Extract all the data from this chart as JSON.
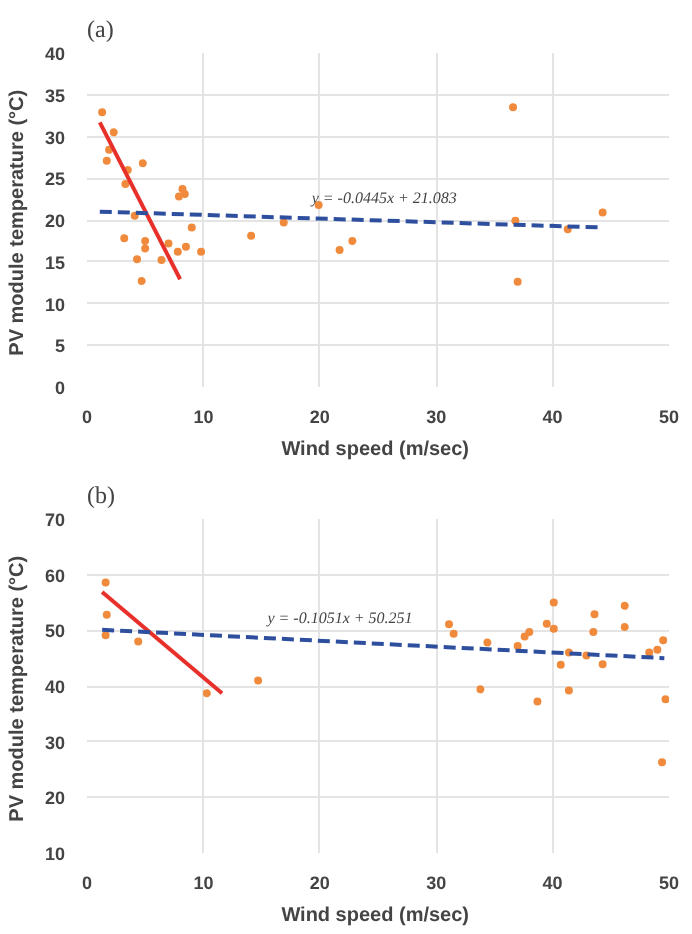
{
  "chart_data": [
    {
      "type": "scatter",
      "title": "(a)",
      "xlabel": "Wind speed  (m/sec)",
      "ylabel": "PV module temperature  (°C)",
      "xlim": [
        0,
        50
      ],
      "ylim": [
        0,
        40
      ],
      "xticks": [
        0,
        10,
        20,
        30,
        40,
        50
      ],
      "yticks": [
        0,
        5,
        10,
        15,
        20,
        25,
        30,
        35,
        40
      ],
      "grid": true,
      "series": [
        {
          "marker": "circle",
          "color": "#f08a3c",
          "x": [
            1.3,
            2.3,
            1.9,
            1.7,
            3.5,
            4.8,
            3.3,
            4.1,
            8.2,
            8.4,
            7.9,
            9.0,
            3.2,
            5.0,
            7.0,
            4.3,
            5.0,
            6.4,
            8.5,
            7.8,
            9.8,
            4.7,
            14.1,
            16.9,
            19.9,
            21.7,
            22.8,
            36.6,
            36.8,
            37.0,
            41.3,
            44.3
          ],
          "values": [
            32.9,
            30.5,
            28.4,
            27.1,
            26.0,
            26.8,
            24.3,
            20.5,
            23.7,
            23.1,
            22.8,
            19.1,
            17.8,
            17.5,
            17.2,
            15.3,
            16.6,
            15.2,
            16.8,
            16.2,
            16.2,
            12.7,
            18.1,
            19.7,
            21.8,
            16.4,
            17.5,
            33.5,
            19.9,
            12.6,
            18.9,
            20.9
          ]
        },
        {
          "type": "line",
          "color": "#e8302a",
          "line_style": "solid",
          "x": [
            1.1,
            8.0
          ],
          "values": [
            31.7,
            12.9
          ]
        },
        {
          "type": "line",
          "color": "#2e4f9e",
          "line_style": "dashed",
          "x": [
            1.1,
            44.3
          ],
          "values": [
            21.0,
            19.1
          ]
        }
      ],
      "annotations": [
        {
          "text": "y = -0.0445x + 21.083",
          "x": 19.3,
          "y": 21.6
        }
      ]
    },
    {
      "type": "scatter",
      "title": "(b)",
      "xlabel": "Wind speed  (m/sec)",
      "ylabel": "PV module temperature  (°C)",
      "xlim": [
        0,
        50
      ],
      "ylim": [
        10,
        70
      ],
      "xticks": [
        0,
        10,
        20,
        30,
        40,
        50
      ],
      "yticks": [
        10,
        20,
        30,
        40,
        50,
        60,
        70
      ],
      "grid": true,
      "series": [
        {
          "marker": "circle",
          "color": "#f08a3c",
          "x": [
            1.6,
            1.7,
            1.6,
            4.4,
            10.3,
            14.7,
            31.1,
            31.5,
            34.4,
            33.8,
            37.0,
            37.6,
            38.0,
            38.7,
            39.5,
            40.1,
            40.1,
            40.7,
            41.4,
            41.4,
            42.9,
            43.6,
            43.5,
            44.3,
            46.2,
            46.2,
            48.3,
            49.0,
            49.5,
            49.4,
            49.7
          ],
          "values": [
            58.6,
            52.8,
            49.1,
            48.0,
            38.7,
            41.0,
            51.1,
            49.4,
            47.8,
            39.4,
            47.2,
            48.9,
            49.7,
            37.2,
            51.2,
            55.0,
            50.3,
            43.8,
            39.2,
            46.0,
            45.5,
            52.9,
            49.7,
            43.9,
            54.4,
            50.6,
            46.0,
            46.5,
            48.2,
            26.3,
            37.6
          ]
        },
        {
          "type": "line",
          "color": "#e8302a",
          "line_style": "solid",
          "x": [
            1.3,
            11.6
          ],
          "values": [
            56.9,
            38.7
          ]
        },
        {
          "type": "line",
          "color": "#2e4f9e",
          "line_style": "dashed",
          "x": [
            1.3,
            49.6
          ],
          "values": [
            50.1,
            45.0
          ]
        }
      ],
      "annotations": [
        {
          "text": "y = -0.1051x + 50.251",
          "x": 15.5,
          "y": 50.6
        }
      ]
    }
  ]
}
